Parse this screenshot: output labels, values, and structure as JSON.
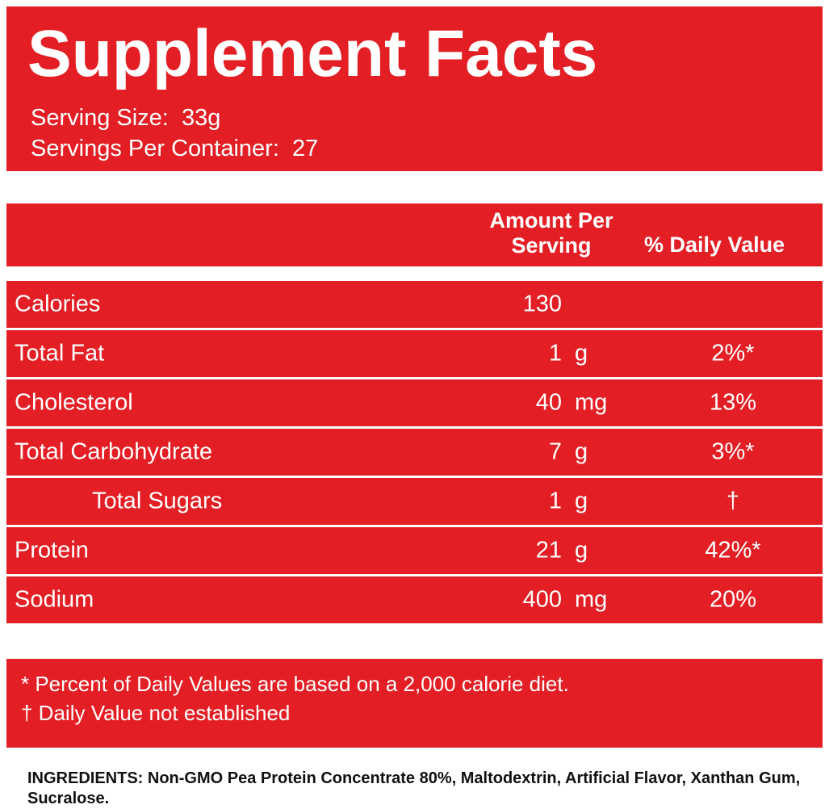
{
  "header": {
    "title": "Supplement Facts",
    "serving_size": "Serving Size:  33g",
    "servings_per_container": "Servings Per Container:  27"
  },
  "table": {
    "columns": [
      "Amount Per Serving",
      "% Daily Value"
    ],
    "rows": [
      {
        "name": "Calories",
        "amount": "130"
      },
      {
        "name": "Total Fat",
        "amount": "1",
        "unit": "g",
        "dv": "2%*"
      },
      {
        "name": "Cholesterol",
        "amount": "40",
        "unit": "mg",
        "dv": "13%"
      },
      {
        "name": "Total Carbohydrate",
        "amount": "7",
        "unit": "g",
        "dv": "3%*"
      },
      {
        "name": "Total Sugars",
        "amount": "1",
        "unit": "g",
        "dv": "†",
        "indent": true
      },
      {
        "name": "Protein",
        "amount": "21",
        "unit": "g",
        "dv": "42%*"
      },
      {
        "name": "Sodium",
        "amount": "400",
        "unit": "mg",
        "dv": "20%"
      }
    ]
  },
  "footnotes": [
    "* Percent of Daily Values are based on a 2,000 calorie diet.",
    "† Daily Value not established"
  ],
  "ingredients": "INGREDIENTS: Non-GMO Pea Protein Concentrate 80%,  Maltodextrin, Artificial Flavor, Xanthan Gum, Sucralose."
}
